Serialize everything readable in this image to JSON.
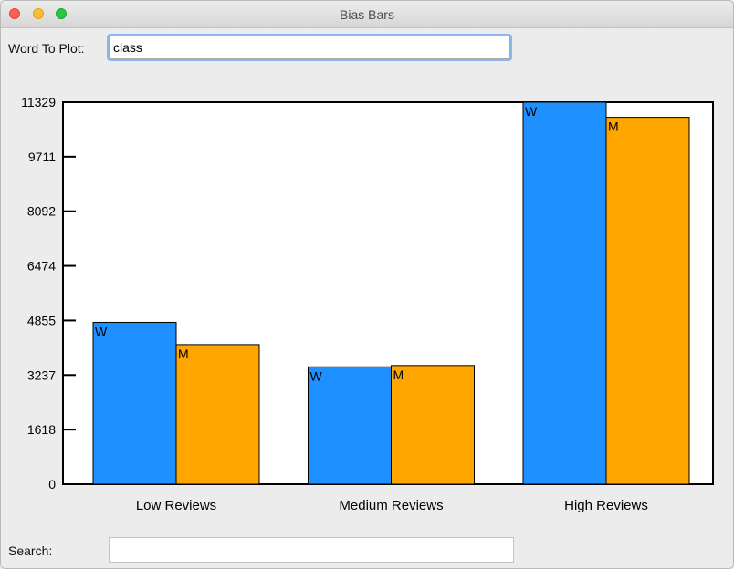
{
  "window": {
    "title": "Bias Bars"
  },
  "controls": {
    "word_label": "Word To Plot:",
    "word_value": "class",
    "search_label": "Search:",
    "search_value": ""
  },
  "colors": {
    "women": "#1e90ff",
    "men": "#ffa500"
  },
  "chart_data": {
    "type": "bar",
    "categories": [
      "Low Reviews",
      "Medium Reviews",
      "High Reviews"
    ],
    "series": [
      {
        "label": "W",
        "values": [
          4800,
          3480,
          11329
        ]
      },
      {
        "label": "M",
        "values": [
          4140,
          3520,
          10880
        ]
      }
    ],
    "yticks": [
      "0",
      "1618",
      "3237",
      "4855",
      "6474",
      "8092",
      "9711",
      "11329"
    ],
    "ylim": [
      0,
      11329
    ],
    "grid": false
  }
}
